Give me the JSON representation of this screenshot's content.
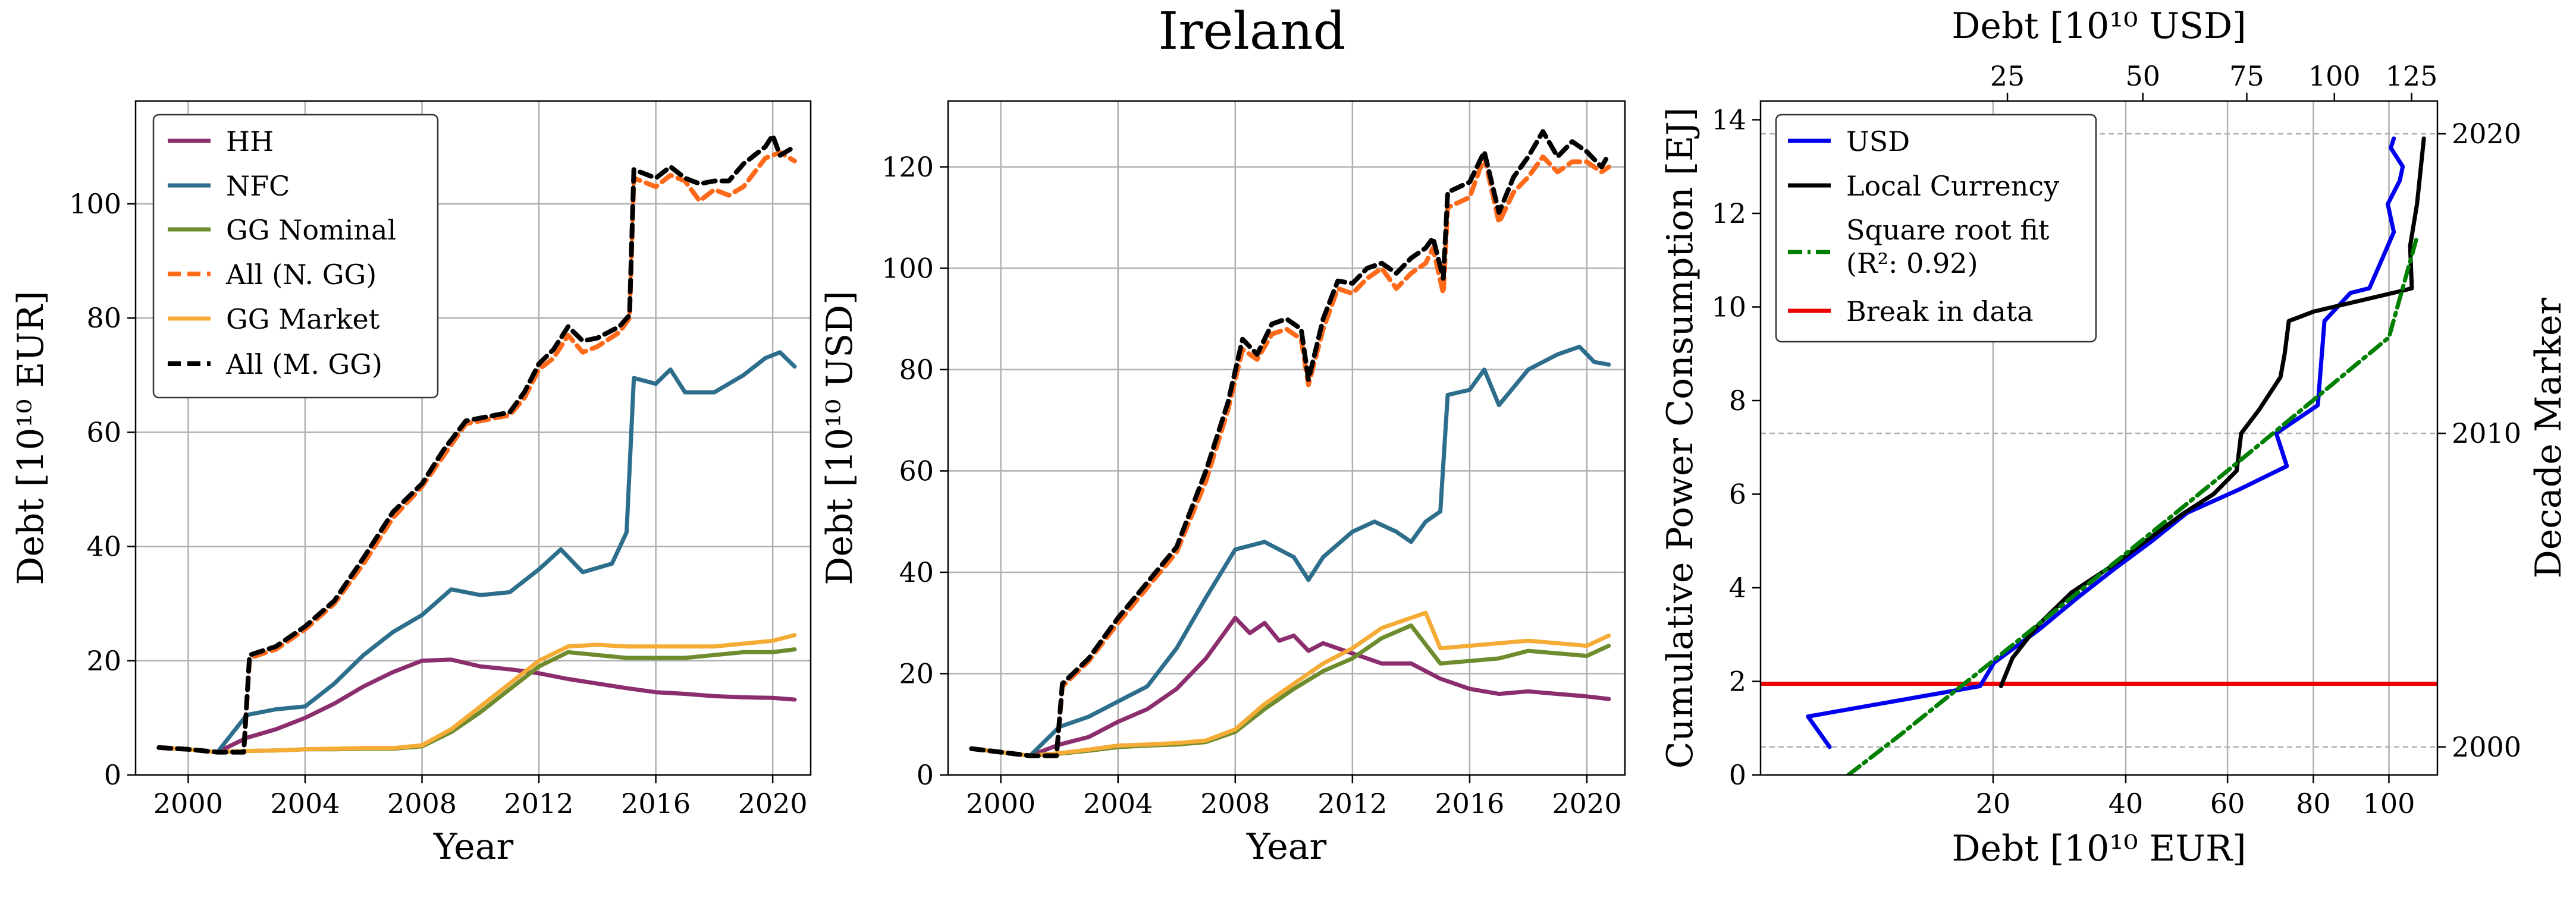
{
  "suptitle": "Ireland",
  "colors": {
    "HH": "#8c2d6e",
    "NFC": "#2d6e8c",
    "GGN": "#6e8c2d",
    "ALLN": "#ff6a1a",
    "GGM": "#f5ac36",
    "ALLM": "#000000",
    "USD": "#0000ee",
    "LOCAL": "#000000",
    "FIT": "#008000",
    "BREAK": "#ee0000",
    "grid": "#b0b0b0"
  },
  "chart_data": [
    {
      "type": "line",
      "ylabel": "Debt [10¹⁰ EUR]",
      "xlabel": "Year",
      "xlim": [
        1998.2,
        2021.3
      ],
      "ylim": [
        0,
        118
      ],
      "xticks": [
        2000,
        2004,
        2008,
        2012,
        2016,
        2020
      ],
      "yticks": [
        0,
        20,
        40,
        60,
        80,
        100
      ],
      "legend": {
        "position": "top-left",
        "entries": [
          "HH",
          "NFC",
          "GG Nominal",
          "All (N. GG)",
          "GG Market",
          "All (M. GG)"
        ]
      },
      "series": [
        {
          "name": "HH",
          "key": "HH",
          "style": "solid",
          "x": [
            1999,
            2000,
            2001,
            2002,
            2003,
            2004,
            2005,
            2006,
            2007,
            2008,
            2009,
            2010,
            2011,
            2012,
            2013,
            2014,
            2015,
            2016,
            2017,
            2018,
            2019,
            2020,
            2020.75
          ],
          "y": [
            4.8,
            4.5,
            4.0,
            6.5,
            8.0,
            10.0,
            12.5,
            15.5,
            18.0,
            20.0,
            20.2,
            19.0,
            18.5,
            17.8,
            16.8,
            16.0,
            15.2,
            14.5,
            14.2,
            13.8,
            13.6,
            13.5,
            13.2
          ]
        },
        {
          "name": "NFC",
          "key": "NFC",
          "style": "solid",
          "x": [
            1999,
            2000,
            2001,
            2002,
            2003,
            2004,
            2005,
            2006,
            2007,
            2008,
            2009,
            2010,
            2011,
            2012,
            2012.75,
            2013.5,
            2014.5,
            2015,
            2015.25,
            2016,
            2016.5,
            2017,
            2018,
            2019,
            2019.75,
            2020.25,
            2020.75
          ],
          "y": [
            4.8,
            4.5,
            4.0,
            10.5,
            11.5,
            12.0,
            16.0,
            21.0,
            25.0,
            28.0,
            32.5,
            31.5,
            32.0,
            36.0,
            39.5,
            35.5,
            37.0,
            42.5,
            69.5,
            68.5,
            71.0,
            67.0,
            67.0,
            70.0,
            73.0,
            74.0,
            71.5
          ]
        },
        {
          "name": "GG Nominal",
          "key": "GGN",
          "style": "solid",
          "x": [
            1999,
            2000,
            2001,
            2002,
            2003,
            2004,
            2005,
            2006,
            2007,
            2008,
            2009,
            2010,
            2011,
            2012,
            2013,
            2014,
            2015,
            2016,
            2017,
            2018,
            2019,
            2020,
            2020.75
          ],
          "y": [
            4.8,
            4.5,
            4.0,
            4.2,
            4.3,
            4.5,
            4.5,
            4.6,
            4.6,
            5.0,
            7.5,
            11.0,
            15.0,
            19.0,
            21.5,
            21.0,
            20.5,
            20.5,
            20.5,
            21.0,
            21.5,
            21.5,
            22.0
          ]
        },
        {
          "name": "GG Market",
          "key": "GGM",
          "style": "solid",
          "x": [
            1999,
            2000,
            2001,
            2002,
            2003,
            2004,
            2005,
            2006,
            2007,
            2008,
            2009,
            2010,
            2011,
            2012,
            2013,
            2014,
            2015,
            2016,
            2017,
            2018,
            2019,
            2020,
            2020.75
          ],
          "y": [
            4.8,
            4.5,
            4.0,
            4.2,
            4.3,
            4.5,
            4.6,
            4.7,
            4.7,
            5.2,
            8.0,
            12.0,
            16.0,
            20.0,
            22.5,
            22.8,
            22.5,
            22.5,
            22.5,
            22.5,
            23.0,
            23.5,
            24.5
          ]
        },
        {
          "name": "All (N. GG)",
          "key": "ALLN",
          "style": "dash",
          "x": [
            1999,
            2000,
            2001,
            2001.9,
            2002.1,
            2003,
            2004,
            2005,
            2006,
            2007,
            2008,
            2008.75,
            2009.5,
            2010.5,
            2011,
            2011.5,
            2012,
            2012.5,
            2013,
            2013.5,
            2014,
            2014.75,
            2015.1,
            2015.25,
            2016,
            2016.5,
            2017,
            2017.5,
            2018,
            2018.5,
            2019,
            2019.75,
            2020.25,
            2020.75
          ],
          "y": [
            4.8,
            4.5,
            4.0,
            4.0,
            20.5,
            22.0,
            25.5,
            30.0,
            37.0,
            45.0,
            50.5,
            56.0,
            61.5,
            62.5,
            63.0,
            66.0,
            71.0,
            73.0,
            77.0,
            74.0,
            75.0,
            77.5,
            80.0,
            104.5,
            103.0,
            105.0,
            104.0,
            100.5,
            102.5,
            101.5,
            103.0,
            108.0,
            109.0,
            107.5
          ]
        },
        {
          "name": "All (M. GG)",
          "key": "ALLM",
          "style": "dash",
          "x": [
            1999,
            2000,
            2001,
            2001.9,
            2002.1,
            2003,
            2004,
            2005,
            2006,
            2007,
            2008,
            2008.75,
            2009.5,
            2010.5,
            2011,
            2011.5,
            2012,
            2012.5,
            2013,
            2013.5,
            2014,
            2014.75,
            2015.1,
            2015.25,
            2016,
            2016.5,
            2017,
            2017.5,
            2018,
            2018.5,
            2019,
            2019.75,
            2020,
            2020.25,
            2020.75
          ],
          "y": [
            4.8,
            4.5,
            4.0,
            4.0,
            21.0,
            22.5,
            26.0,
            30.5,
            38.0,
            46.0,
            51.0,
            57.0,
            62.0,
            63.0,
            63.5,
            67.0,
            72.0,
            74.5,
            78.5,
            76.0,
            76.5,
            78.5,
            80.5,
            106.0,
            104.5,
            106.5,
            104.5,
            103.5,
            104.0,
            104.0,
            107.0,
            110.0,
            112.0,
            108.5,
            110.0
          ]
        }
      ]
    },
    {
      "type": "line",
      "ylabel": "Debt [10¹⁰ USD]",
      "xlabel": "Year",
      "xlim": [
        1998.2,
        2021.3
      ],
      "ylim": [
        0,
        133
      ],
      "xticks": [
        2000,
        2004,
        2008,
        2012,
        2016,
        2020
      ],
      "yticks": [
        0,
        20,
        40,
        60,
        80,
        100,
        120
      ],
      "series": [
        {
          "name": "HH",
          "key": "HH",
          "style": "solid",
          "x": [
            1999,
            2000,
            2001,
            2002,
            2003,
            2004,
            2005,
            2006,
            2007,
            2008,
            2008.5,
            2009,
            2009.5,
            2010,
            2010.5,
            2011,
            2012,
            2013,
            2014,
            2015,
            2016,
            2017,
            2018,
            2019,
            2020,
            2020.75
          ],
          "y": [
            5.2,
            4.5,
            3.8,
            6.0,
            7.5,
            10.5,
            13.0,
            17.0,
            23.0,
            31.0,
            28.0,
            30.0,
            26.5,
            27.5,
            24.5,
            26.0,
            24.0,
            22.0,
            22.0,
            19.0,
            17.0,
            16.0,
            16.5,
            16.0,
            15.5,
            15.0
          ]
        },
        {
          "name": "NFC",
          "key": "NFC",
          "style": "solid",
          "x": [
            1999,
            2000,
            2001,
            2002,
            2003,
            2004,
            2005,
            2006,
            2007,
            2008,
            2009,
            2010,
            2010.5,
            2011,
            2012,
            2012.75,
            2013.5,
            2014,
            2014.5,
            2015,
            2015.25,
            2016,
            2016.5,
            2017,
            2018,
            2019,
            2019.75,
            2020.25,
            2020.75
          ],
          "y": [
            5.2,
            4.5,
            3.8,
            9.5,
            11.5,
            14.5,
            17.5,
            25.0,
            35.0,
            44.5,
            46.0,
            43.0,
            38.5,
            43.0,
            48.0,
            50.0,
            48.0,
            46.0,
            50.0,
            52.0,
            75.0,
            76.0,
            80.0,
            73.0,
            80.0,
            83.0,
            84.5,
            81.5,
            81.0
          ]
        },
        {
          "name": "GG Nominal",
          "key": "GGN",
          "style": "solid",
          "x": [
            1999,
            2000,
            2001,
            2002,
            2003,
            2004,
            2005,
            2006,
            2007,
            2008,
            2009,
            2010,
            2011,
            2012,
            2013,
            2014,
            2015,
            2016,
            2017,
            2018,
            2019,
            2020,
            2020.75
          ],
          "y": [
            5.2,
            4.5,
            3.8,
            4.2,
            4.8,
            5.5,
            5.8,
            6.0,
            6.5,
            8.5,
            13.0,
            17.0,
            20.5,
            23.0,
            27.0,
            29.5,
            22.0,
            22.5,
            23.0,
            24.5,
            24.0,
            23.5,
            25.5
          ]
        },
        {
          "name": "GG Market",
          "key": "GGM",
          "style": "solid",
          "x": [
            1999,
            2000,
            2001,
            2002,
            2003,
            2004,
            2005,
            2006,
            2007,
            2008,
            2009,
            2010,
            2011,
            2012,
            2013,
            2014,
            2014.5,
            2015,
            2016,
            2017,
            2018,
            2019,
            2020,
            2020.75
          ],
          "y": [
            5.2,
            4.5,
            3.8,
            4.3,
            5.0,
            5.8,
            6.0,
            6.3,
            6.8,
            9.0,
            14.0,
            18.0,
            22.0,
            25.0,
            29.0,
            31.0,
            32.0,
            25.0,
            25.5,
            26.0,
            26.5,
            26.0,
            25.5,
            27.5
          ]
        },
        {
          "name": "All (N. GG)",
          "key": "ALLN",
          "style": "dash",
          "x": [
            1999,
            2000,
            2001,
            2001.9,
            2002.1,
            2003,
            2004,
            2005,
            2006,
            2007,
            2007.75,
            2008.25,
            2008.75,
            2009.25,
            2009.75,
            2010.25,
            2010.5,
            2011,
            2011.5,
            2012,
            2012.5,
            2013,
            2013.5,
            2014,
            2014.5,
            2014.75,
            2015.1,
            2015.25,
            2016,
            2016.5,
            2017,
            2017.5,
            2018,
            2018.5,
            2019,
            2019.5,
            2020,
            2020.5,
            2020.75
          ],
          "y": [
            5.2,
            4.5,
            3.8,
            3.8,
            17.5,
            22.5,
            30.0,
            37.0,
            44.0,
            58.0,
            72.0,
            84.0,
            82.0,
            87.0,
            88.0,
            86.0,
            77.0,
            88.0,
            96.0,
            95.0,
            98.0,
            100.0,
            96.0,
            99.0,
            101.0,
            104.0,
            95.0,
            112.0,
            114.0,
            122.0,
            109.0,
            115.0,
            118.0,
            122.0,
            119.0,
            121.0,
            121.0,
            119.0,
            120.0
          ]
        },
        {
          "name": "All (M. GG)",
          "key": "ALLM",
          "style": "dash",
          "x": [
            1999,
            2000,
            2001,
            2001.9,
            2002.1,
            2003,
            2004,
            2005,
            2006,
            2007,
            2007.75,
            2008.25,
            2008.75,
            2009.25,
            2009.75,
            2010.25,
            2010.5,
            2011,
            2011.5,
            2012,
            2012.5,
            2013,
            2013.5,
            2014,
            2014.5,
            2014.75,
            2015.1,
            2015.25,
            2016,
            2016.5,
            2017,
            2017.5,
            2018,
            2018.5,
            2019,
            2019.5,
            2020,
            2020.5,
            2020.75
          ],
          "y": [
            5.2,
            4.5,
            3.8,
            3.8,
            18.0,
            23.0,
            31.0,
            38.0,
            45.0,
            60.0,
            73.5,
            86.0,
            83.0,
            89.0,
            90.0,
            88.0,
            78.0,
            90.0,
            97.5,
            97.0,
            100.0,
            101.0,
            99.0,
            102.0,
            104.0,
            106.0,
            98.0,
            115.0,
            117.0,
            123.0,
            111.0,
            118.0,
            122.0,
            127.0,
            122.0,
            125.0,
            123.0,
            120.0,
            122.5
          ]
        }
      ]
    },
    {
      "type": "line",
      "ylabel": "Cumulative Power Consumption [EJ]",
      "xlabel": "Debt [10¹⁰ EUR]",
      "top_xlabel": "Debt [10¹⁰ USD]",
      "right_ylabel": "Decade Marker",
      "xscale": "sqrt",
      "xlim": [
        1.5,
        114
      ],
      "ylim": [
        0,
        14.4
      ],
      "top_xlim": [
        1.5,
        134
      ],
      "xticks": [
        20,
        40,
        60,
        80,
        100
      ],
      "yticks": [
        0,
        2,
        4,
        6,
        8,
        10,
        12,
        14
      ],
      "top_xticks": [
        25,
        50,
        75,
        100,
        125
      ],
      "decade_markers": [
        {
          "label": "2000",
          "y": 0.6
        },
        {
          "label": "2010",
          "y": 7.3
        },
        {
          "label": "2020",
          "y": 13.7
        }
      ],
      "legend": {
        "position": "top-left",
        "entries": [
          "USD",
          "Local Currency",
          "Square root fit",
          "(R²: 0.92)",
          "Break in data"
        ]
      },
      "series": [
        {
          "name": "USD",
          "key": "USD",
          "style": "solid",
          "axis": "top",
          "x": [
            5.2,
            3.8,
            21.0,
            23.0,
            30.0,
            37.0,
            44.0,
            52.0,
            60.0,
            73.0,
            86.0,
            83.0,
            95.0,
            97.0,
            105.0,
            111.0,
            119.0,
            117.0,
            121.0,
            122.0,
            118.0,
            119.0
          ],
          "y": [
            0.6,
            1.25,
            1.9,
            2.4,
            3.1,
            3.8,
            4.4,
            5.0,
            5.6,
            6.1,
            6.6,
            7.3,
            7.9,
            9.7,
            10.3,
            10.4,
            11.6,
            12.2,
            12.7,
            13.0,
            13.4,
            13.6
          ]
        },
        {
          "name": "Local Currency",
          "key": "LOCAL",
          "style": "solid",
          "axis": "bottom",
          "x": [
            21.0,
            22.5,
            26.0,
            31.0,
            38.0,
            46.0,
            51.0,
            57.0,
            62.0,
            63.0,
            67.0,
            72.0,
            73.0,
            74.0,
            77.0,
            80.0,
            104.0,
            106.5,
            106.0,
            108.0,
            109.0,
            110.0
          ],
          "y": [
            1.9,
            2.5,
            3.2,
            3.9,
            4.5,
            5.2,
            5.6,
            6.0,
            6.5,
            7.3,
            7.8,
            8.5,
            9.0,
            9.7,
            9.8,
            9.9,
            10.35,
            10.4,
            11.3,
            12.2,
            12.9,
            13.6
          ]
        },
        {
          "name": "Square root fit",
          "key": "FIT",
          "style": "dashdot",
          "axis": "bottom",
          "x": [
            6,
            10,
            15,
            20,
            30,
            40,
            50,
            60,
            70,
            80,
            90,
            100,
            108
          ],
          "y": [
            0.0,
            0.84,
            1.71,
            2.44,
            3.68,
            4.73,
            5.66,
            6.5,
            7.28,
            8.01,
            8.7,
            9.35,
            11.5
          ]
        }
      ],
      "break_in_data": {
        "name": "Break in data",
        "key": "BREAK",
        "y": 1.95
      }
    }
  ]
}
